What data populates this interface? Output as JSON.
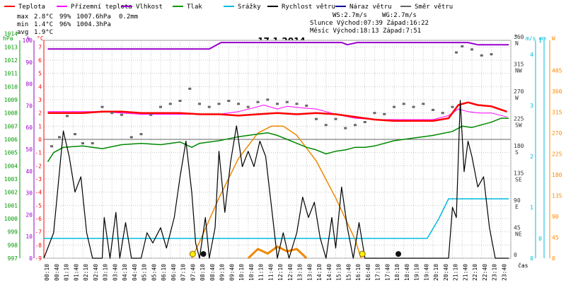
{
  "chart_data": {
    "type": "line",
    "title": "17.1.2014",
    "legend": [
      {
        "name": "Teplota",
        "color": "#ff0000"
      },
      {
        "name": "Přízemní teplota",
        "color": "#ff00ff"
      },
      {
        "name": "Vlhkost",
        "color": "#9900cc"
      },
      {
        "name": "Tlak",
        "color": "#009900"
      },
      {
        "name": "Srážky",
        "color": "#00bbdd"
      },
      {
        "name": "Rychlost větru",
        "color": "#000000"
      },
      {
        "name": "Náraz větru",
        "color": "#000099"
      },
      {
        "name": "Směr větru",
        "color": "#666666"
      }
    ],
    "stats": {
      "max": {
        "label": "max",
        "temp": "2.8°C",
        "hum": "99%",
        "press": "1007.6hPa",
        "rain": "0.2mm"
      },
      "min": {
        "label": "min",
        "temp": "1.4°C",
        "hum": "96%",
        "press": "1004.3hPa"
      },
      "avg": {
        "label": "avg",
        "temp": "1.9°C"
      }
    },
    "info": {
      "ws": "WS:2.7m/s",
      "wg": "WG:2.7m/s",
      "sun": "Slunce Východ:07:39  Západ:16:22",
      "moon": "Měsíc  Východ:18:13  Západ:7:51"
    },
    "axes": {
      "hpa_label": "hPa",
      "pct_label": "%",
      "c_label": "°C",
      "deg_label": "°",
      "ms_label": "m/s",
      "mm_label": "mm",
      "w_label": "W",
      "time_label": "čas",
      "hpa_ticks": [
        1014,
        1013,
        1012,
        1011,
        1010,
        1009,
        1008,
        1007,
        1006,
        1005,
        1004,
        1003,
        1002,
        1001,
        1000,
        999,
        998,
        997
      ],
      "pct_ticks": [
        100,
        90,
        80,
        70,
        60,
        50,
        40,
        30,
        20,
        10,
        0
      ],
      "c_ticks": [
        7,
        6,
        5,
        4,
        3,
        2,
        1,
        0,
        -1,
        -2,
        -3,
        -4,
        -5,
        -6,
        -7,
        -8,
        -9
      ],
      "dir_ticks": [
        {
          "v": "360",
          "d": "N"
        },
        {
          "v": "315",
          "d": "NW"
        },
        {
          "v": "270",
          "d": "W"
        },
        {
          "v": "225",
          "d": "SW"
        },
        {
          "v": "180",
          "d": "S"
        },
        {
          "v": "135",
          "d": "SE"
        },
        {
          "v": "90",
          "d": "E"
        },
        {
          "v": "45",
          "d": "NE"
        },
        {
          "v": "0",
          "d": ""
        }
      ],
      "ms_ticks": [
        "4",
        "3",
        "2",
        "1",
        "0"
      ],
      "mm_ticks": [
        "1",
        "0"
      ],
      "w_ticks": [
        405,
        360,
        315,
        270,
        225,
        180,
        135,
        90,
        45,
        0
      ],
      "time_ticks": [
        "00:10",
        "00:40",
        "01:10",
        "01:40",
        "02:10",
        "02:40",
        "03:10",
        "03:40",
        "04:10",
        "04:40",
        "05:10",
        "05:40",
        "06:10",
        "06:40",
        "07:10",
        "07:40",
        "08:10",
        "08:40",
        "09:10",
        "09:40",
        "10:10",
        "10:40",
        "11:10",
        "11:40",
        "12:10",
        "12:40",
        "13:10",
        "13:40",
        "14:10",
        "14:40",
        "15:10",
        "15:40",
        "16:10",
        "16:40",
        "17:10",
        "17:40",
        "18:10",
        "18:40",
        "19:10",
        "19:40",
        "20:10",
        "20:40",
        "21:10",
        "21:40",
        "22:10",
        "22:40",
        "23:10",
        "23:40"
      ]
    },
    "series": {
      "temperature_c": [
        [
          0.2,
          2.0
        ],
        [
          1,
          2.0
        ],
        [
          2,
          2.0
        ],
        [
          3,
          2.1
        ],
        [
          4,
          2.1
        ],
        [
          5,
          2.0
        ],
        [
          6,
          2.0
        ],
        [
          7,
          2.0
        ],
        [
          8,
          1.9
        ],
        [
          9,
          1.9
        ],
        [
          10,
          1.8
        ],
        [
          11,
          1.9
        ],
        [
          12,
          2.0
        ],
        [
          13,
          1.9
        ],
        [
          14,
          2.0
        ],
        [
          15,
          1.9
        ],
        [
          16,
          1.7
        ],
        [
          17,
          1.5
        ],
        [
          18,
          1.4
        ],
        [
          19,
          1.4
        ],
        [
          20,
          1.4
        ],
        [
          20.8,
          1.6
        ],
        [
          21.3,
          2.6
        ],
        [
          21.8,
          2.8
        ],
        [
          22.3,
          2.6
        ],
        [
          23,
          2.5
        ],
        [
          23.8,
          2.1
        ]
      ],
      "ground_temp_c": [
        [
          0.2,
          2.1
        ],
        [
          1,
          2.1
        ],
        [
          2,
          2.1
        ],
        [
          3,
          2.1
        ],
        [
          4,
          2.0
        ],
        [
          5,
          1.9
        ],
        [
          6,
          1.9
        ],
        [
          7,
          1.9
        ],
        [
          8,
          1.9
        ],
        [
          9,
          1.9
        ],
        [
          10,
          2.1
        ],
        [
          10.8,
          2.4
        ],
        [
          11.3,
          2.6
        ],
        [
          12,
          2.3
        ],
        [
          12.5,
          2.5
        ],
        [
          13.2,
          2.4
        ],
        [
          14,
          2.3
        ],
        [
          15,
          1.9
        ],
        [
          16,
          1.6
        ],
        [
          17,
          1.5
        ],
        [
          18,
          1.5
        ],
        [
          19,
          1.5
        ],
        [
          20,
          1.5
        ],
        [
          20.8,
          1.8
        ],
        [
          21.3,
          2.3
        ],
        [
          21.8,
          2.1
        ],
        [
          22.4,
          2.0
        ],
        [
          23,
          2.0
        ],
        [
          23.8,
          1.7
        ]
      ],
      "humidity_pct": [
        [
          0.2,
          96
        ],
        [
          8.5,
          96
        ],
        [
          9.1,
          99
        ],
        [
          15.3,
          99
        ],
        [
          15.6,
          98
        ],
        [
          16.1,
          99
        ],
        [
          21.8,
          99
        ],
        [
          22.3,
          98
        ],
        [
          23.9,
          98
        ]
      ],
      "pressure_hpa": [
        [
          0.2,
          1004.3
        ],
        [
          0.5,
          1005.0
        ],
        [
          1,
          1005.4
        ],
        [
          2,
          1005.5
        ],
        [
          3,
          1005.3
        ],
        [
          4,
          1005.6
        ],
        [
          5,
          1005.7
        ],
        [
          6,
          1005.6
        ],
        [
          7,
          1005.8
        ],
        [
          7.6,
          1005.4
        ],
        [
          8,
          1005.7
        ],
        [
          9,
          1005.9
        ],
        [
          10,
          1006.2
        ],
        [
          11,
          1006.4
        ],
        [
          11.5,
          1006.5
        ],
        [
          12,
          1006.3
        ],
        [
          12.5,
          1006.0
        ],
        [
          13,
          1005.7
        ],
        [
          13.5,
          1005.4
        ],
        [
          14,
          1005.2
        ],
        [
          14.5,
          1004.9
        ],
        [
          15,
          1005.1
        ],
        [
          15.5,
          1005.2
        ],
        [
          16,
          1005.4
        ],
        [
          16.5,
          1005.4
        ],
        [
          17,
          1005.5
        ],
        [
          18,
          1005.9
        ],
        [
          19,
          1006.1
        ],
        [
          20,
          1006.3
        ],
        [
          21,
          1006.6
        ],
        [
          21.5,
          1007.0
        ],
        [
          22,
          1006.9
        ],
        [
          23,
          1007.3
        ],
        [
          23.5,
          1007.6
        ],
        [
          23.9,
          1007.6
        ]
      ],
      "rain_mm": [
        [
          0,
          0
        ],
        [
          19.7,
          0
        ],
        [
          20.3,
          0.1
        ],
        [
          20.8,
          0.2
        ],
        [
          23.9,
          0.2
        ]
      ],
      "solar_w": [
        [
          7.6,
          0
        ],
        [
          8,
          35
        ],
        [
          9,
          130
        ],
        [
          10,
          215
        ],
        [
          11,
          270
        ],
        [
          11.7,
          285
        ],
        [
          12.3,
          285
        ],
        [
          13,
          265
        ],
        [
          14,
          210
        ],
        [
          15,
          130
        ],
        [
          16,
          40
        ],
        [
          16.3,
          0
        ]
      ],
      "solar_w_small": [
        [
          10.5,
          0
        ],
        [
          11,
          20
        ],
        [
          11.5,
          10
        ],
        [
          12,
          25
        ],
        [
          12.5,
          15
        ],
        [
          13,
          20
        ],
        [
          13.5,
          0
        ]
      ],
      "wind_speed_ms": [
        [
          0,
          0
        ],
        [
          0.5,
          0.5
        ],
        [
          1,
          2.5
        ],
        [
          1.3,
          2.0
        ],
        [
          1.6,
          1.3
        ],
        [
          1.9,
          1.6
        ],
        [
          2.2,
          0.5
        ],
        [
          2.5,
          0
        ],
        [
          3,
          0
        ],
        [
          3.1,
          0.8
        ],
        [
          3.4,
          0
        ],
        [
          3.7,
          0.9
        ],
        [
          3.9,
          0
        ],
        [
          4.2,
          0.7
        ],
        [
          4.5,
          0
        ],
        [
          5,
          0
        ],
        [
          5.3,
          0.5
        ],
        [
          5.6,
          0.3
        ],
        [
          6,
          0.6
        ],
        [
          6.3,
          0.2
        ],
        [
          6.7,
          0.8
        ],
        [
          7,
          1.6
        ],
        [
          7.3,
          2.3
        ],
        [
          7.6,
          1.3
        ],
        [
          7.8,
          0.3
        ],
        [
          8,
          0
        ],
        [
          8.3,
          0.8
        ],
        [
          8.5,
          0
        ],
        [
          8.8,
          0.6
        ],
        [
          9.0,
          2.1
        ],
        [
          9.3,
          0.9
        ],
        [
          9.6,
          1.9
        ],
        [
          9.9,
          2.6
        ],
        [
          10.2,
          1.8
        ],
        [
          10.5,
          2.1
        ],
        [
          10.8,
          1.8
        ],
        [
          11.1,
          2.3
        ],
        [
          11.4,
          2.0
        ],
        [
          11.7,
          1.0
        ],
        [
          12,
          0
        ],
        [
          12.3,
          0.5
        ],
        [
          12.6,
          0
        ],
        [
          13,
          0.5
        ],
        [
          13.3,
          1.2
        ],
        [
          13.6,
          0.8
        ],
        [
          13.9,
          1.1
        ],
        [
          14.2,
          0.4
        ],
        [
          14.5,
          0
        ],
        [
          14.8,
          0.8
        ],
        [
          15.0,
          0.2
        ],
        [
          15.3,
          1.4
        ],
        [
          15.6,
          0.6
        ],
        [
          15.9,
          0
        ],
        [
          16.2,
          0.7
        ],
        [
          16.5,
          0
        ],
        [
          20.8,
          0
        ],
        [
          21.0,
          1.0
        ],
        [
          21.2,
          0.8
        ],
        [
          21.4,
          3.1
        ],
        [
          21.6,
          1.7
        ],
        [
          21.8,
          2.3
        ],
        [
          22.0,
          2.0
        ],
        [
          22.3,
          1.4
        ],
        [
          22.6,
          1.6
        ],
        [
          22.9,
          0.6
        ],
        [
          23.2,
          0
        ],
        [
          23.5,
          0
        ],
        [
          23.9,
          0
        ]
      ],
      "wind_dir_deg": [
        [
          0.4,
          185
        ],
        [
          0.8,
          200
        ],
        [
          1.2,
          235
        ],
        [
          1.6,
          205
        ],
        [
          2.0,
          190
        ],
        [
          2.5,
          190
        ],
        [
          3,
          250
        ],
        [
          3.5,
          240
        ],
        [
          4,
          237
        ],
        [
          4.5,
          200
        ],
        [
          5,
          205
        ],
        [
          5.5,
          237
        ],
        [
          6,
          250
        ],
        [
          6.5,
          255
        ],
        [
          7,
          260
        ],
        [
          7.5,
          280
        ],
        [
          8,
          255
        ],
        [
          8.5,
          250
        ],
        [
          9,
          255
        ],
        [
          9.5,
          260
        ],
        [
          10,
          255
        ],
        [
          10.5,
          250
        ],
        [
          11,
          258
        ],
        [
          11.5,
          262
        ],
        [
          12,
          255
        ],
        [
          12.5,
          258
        ],
        [
          13,
          255
        ],
        [
          13.5,
          252
        ],
        [
          14,
          230
        ],
        [
          14.5,
          220
        ],
        [
          15,
          230
        ],
        [
          15.5,
          215
        ],
        [
          16,
          220
        ],
        [
          16.5,
          225
        ],
        [
          17,
          240
        ],
        [
          17.5,
          238
        ],
        [
          18,
          250
        ],
        [
          18.5,
          255
        ],
        [
          19,
          250
        ],
        [
          19.5,
          255
        ],
        [
          20,
          245
        ],
        [
          20.5,
          240
        ],
        [
          21,
          250
        ],
        [
          21.2,
          340
        ],
        [
          21.5,
          350
        ],
        [
          22,
          345
        ],
        [
          22.5,
          335
        ],
        [
          23,
          337
        ]
      ]
    }
  }
}
